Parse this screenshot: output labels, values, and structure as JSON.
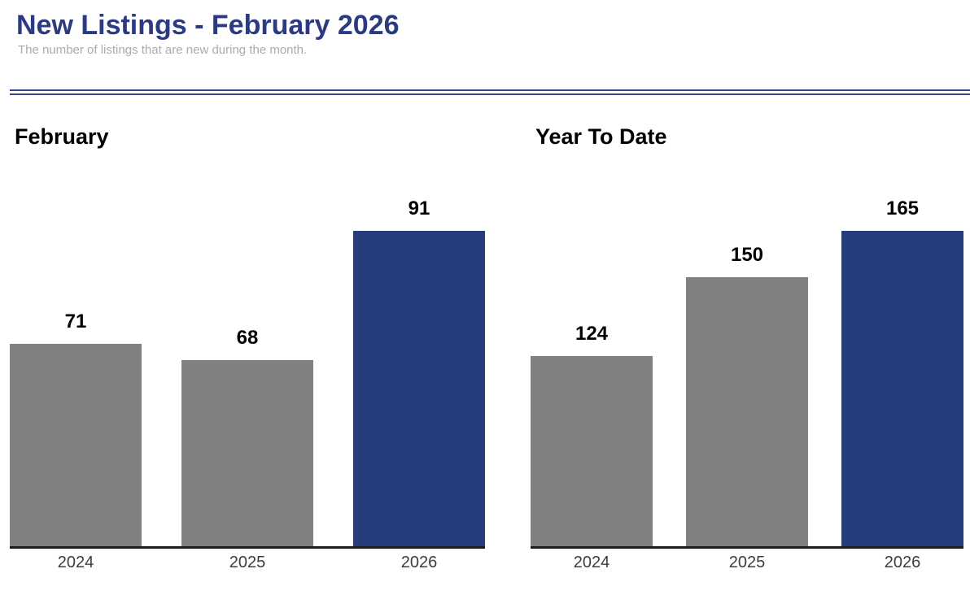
{
  "header": {
    "title": "New Listings - February 2026",
    "subtitle": "The number of listings that are new during the month."
  },
  "colors": {
    "title_navy": "#2b3a85",
    "subtitle_gray": "#ababab",
    "rule_navy": "#31448e",
    "bar_gray": "#808080",
    "bar_navy": "#263c7c",
    "axis_black": "#1c1c1c",
    "tick_gray": "#3d3d3d",
    "value_label_black": "#000000"
  },
  "chart_data": [
    {
      "type": "bar",
      "title": "February",
      "categories": [
        "2024",
        "2025",
        "2026"
      ],
      "values": [
        71,
        68,
        91
      ],
      "value_labels": [
        "71",
        "68",
        "91"
      ],
      "bar_colors": [
        "#808080",
        "#808080",
        "#263c7c"
      ],
      "ylim": [
        35,
        91
      ],
      "grid": false,
      "legend": "none",
      "xlabel": "",
      "ylabel": ""
    },
    {
      "type": "bar",
      "title": "Year To Date",
      "categories": [
        "2024",
        "2025",
        "2026"
      ],
      "values": [
        124,
        150,
        165
      ],
      "value_labels": [
        "124",
        "150",
        "165"
      ],
      "bar_colors": [
        "#808080",
        "#808080",
        "#263c7c"
      ],
      "ylim": [
        62,
        165
      ],
      "grid": false,
      "legend": "none",
      "xlabel": "",
      "ylabel": ""
    }
  ]
}
